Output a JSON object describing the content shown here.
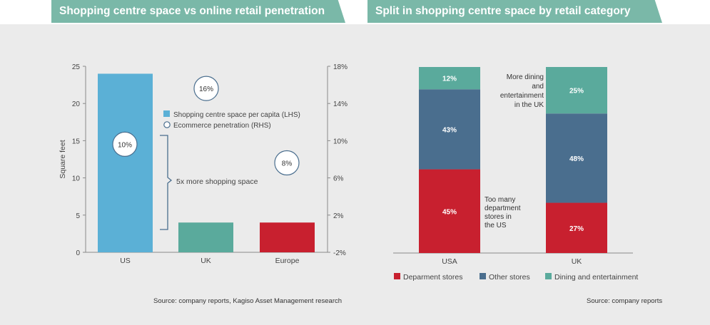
{
  "left_title": "Shopping centre space vs online retail penetration",
  "right_title": "Split in shopping centre space by retail category",
  "left_source": "Source: company reports, Kagiso Asset Management research",
  "right_source": "Source: company reports",
  "colors": {
    "banner": "#7ab8a8",
    "shopping_space": "#5bb0d6",
    "uk_bar": "#5aaa9c",
    "europe_bar": "#c8202f",
    "department_stores": "#c8202f",
    "other_stores": "#4a6e8e",
    "dining": "#5aaa9c"
  },
  "chart_data": [
    {
      "type": "bar",
      "title": "Shopping centre space vs online retail penetration",
      "categories": [
        "US",
        "UK",
        "Europe"
      ],
      "ylabel": "Square feet",
      "ylim": [
        0,
        25
      ],
      "y_ticks": [
        "0",
        "5",
        "10",
        "15",
        "20",
        "25"
      ],
      "y2lim": [
        -2,
        18
      ],
      "y2_ticks": [
        "-2%",
        "2%",
        "6%",
        "10%",
        "14%",
        "18%"
      ],
      "legend": [
        "Shopping centre space per capita (LHS)",
        "Ecommerce penetration (RHS)"
      ],
      "series": [
        {
          "name": "Shopping centre space per capita (LHS)",
          "values": [
            24,
            4,
            4
          ]
        },
        {
          "name": "Ecommerce penetration (RHS)",
          "values": [
            10,
            16,
            8
          ],
          "labels": [
            "10%",
            "16%",
            "8%"
          ]
        }
      ],
      "annotation": "5x more shopping space",
      "grid": false
    },
    {
      "type": "bar",
      "stacked": true,
      "title": "Split in shopping centre space by retail category",
      "categories": [
        "USA",
        "UK"
      ],
      "series": [
        {
          "name": "Deparment stores",
          "values": [
            45,
            27
          ],
          "labels": [
            "45%",
            "27%"
          ]
        },
        {
          "name": "Other stores",
          "values": [
            43,
            48
          ],
          "labels": [
            "43%",
            "48%"
          ]
        },
        {
          "name": "Dining and entertainment",
          "values": [
            12,
            25
          ],
          "labels": [
            "12%",
            "25%"
          ]
        }
      ],
      "annotations": [
        [
          "Too many",
          "department",
          "stores in",
          "the US"
        ],
        [
          "More dining",
          "and",
          "entertainment",
          "in the UK"
        ]
      ],
      "legend_position": "bottom"
    }
  ]
}
